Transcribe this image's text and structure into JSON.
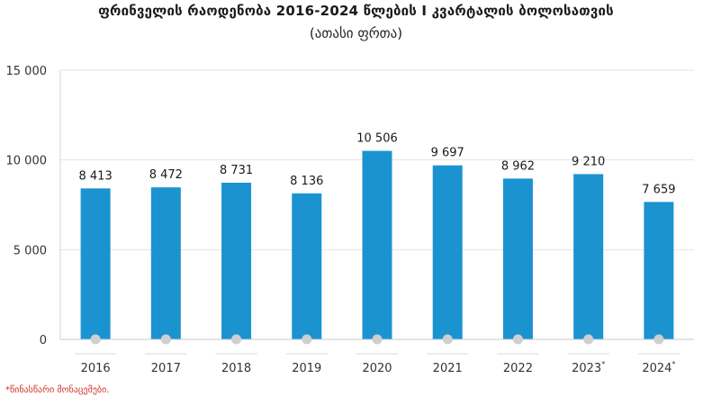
{
  "chart_data": {
    "type": "bar",
    "title": "ფრინველის რაოდენობა 2016-2024 წლების I კვარტალის ბოლოსათვის",
    "subtitle": "(ათასი ფრთა)",
    "categories": [
      "2016",
      "2017",
      "2018",
      "2019",
      "2020",
      "2021",
      "2022",
      "2023*",
      "2024*"
    ],
    "values": [
      8413,
      8472,
      8731,
      8136,
      10506,
      9697,
      8962,
      9210,
      7659
    ],
    "value_labels": [
      "8 413",
      "8 472",
      "8 731",
      "8 136",
      "10 506",
      "9 697",
      "8 962",
      "9 210",
      "7 659"
    ],
    "ylim": [
      0,
      15000
    ],
    "yticks": [
      0,
      5000,
      10000,
      15000
    ],
    "ytick_labels": [
      "0",
      "5 000",
      "10 000",
      "15 000"
    ],
    "xlabel": "",
    "ylabel": "",
    "grid": true,
    "bar_color": "#1b93d1",
    "footnote": "*წინასწარი მონაცემები."
  }
}
